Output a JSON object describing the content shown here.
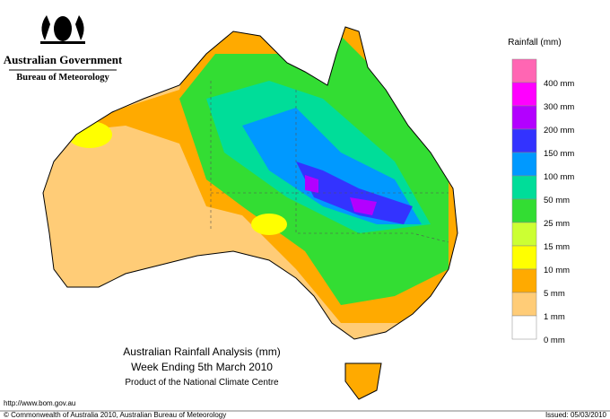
{
  "header": {
    "government": "Australian Government",
    "agency": "Bureau of Meteorology"
  },
  "map": {
    "title": "Australian Rainfall Analysis (mm)",
    "subtitle": "Week Ending 5th March 2010",
    "credit": "Product of the National Climate Centre"
  },
  "legend": {
    "title": "Rainfall (mm)",
    "items": [
      {
        "label": "400 mm",
        "color": "#ff66b3"
      },
      {
        "label": "300 mm",
        "color": "#ff00ff"
      },
      {
        "label": "200 mm",
        "color": "#b300ff"
      },
      {
        "label": "150 mm",
        "color": "#3333ff"
      },
      {
        "label": "100 mm",
        "color": "#0099ff"
      },
      {
        "label": "50 mm",
        "color": "#00dd99"
      },
      {
        "label": "25 mm",
        "color": "#33dd33"
      },
      {
        "label": "15 mm",
        "color": "#ccff33"
      },
      {
        "label": "10 mm",
        "color": "#ffff00"
      },
      {
        "label": "5 mm",
        "color": "#ffaa00"
      },
      {
        "label": "1 mm",
        "color": "#ffcc77"
      },
      {
        "label": "0 mm",
        "color": "#ffffff"
      }
    ]
  },
  "footer": {
    "url": "http://www.bom.gov.au",
    "copyright": "© Commonwealth of Australia 2010, Australian Bureau of Meteorology",
    "issued": "Issued: 05/03/2010"
  }
}
